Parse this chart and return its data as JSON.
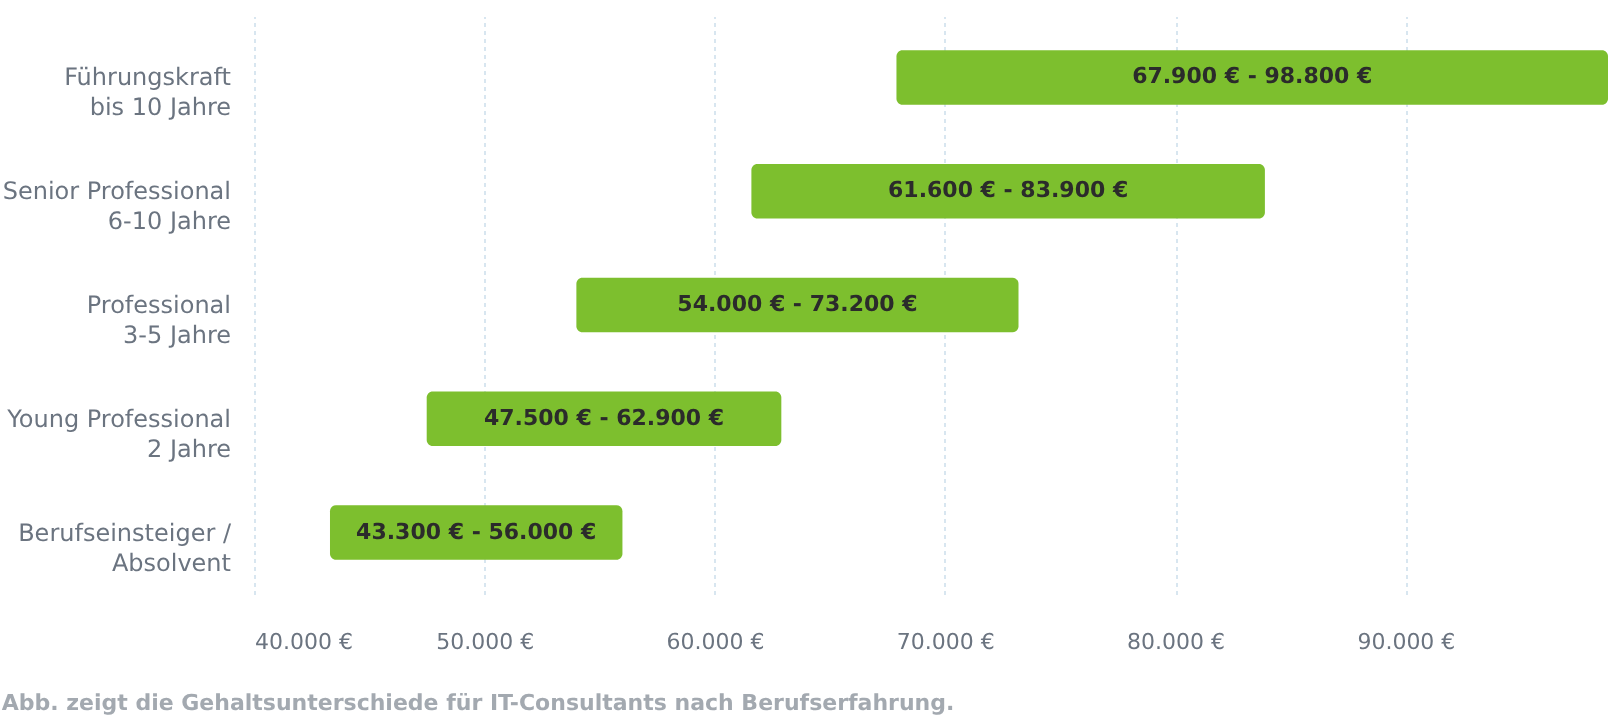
{
  "chart_data": {
    "type": "bar",
    "orientation": "horizontal",
    "categories": [
      "Führungskraft\nbis 10 Jahre",
      "Senior Professional\n6-10 Jahre",
      "Professional\n3-5 Jahre",
      "Young Professional\n2 Jahre",
      "Berufseinsteiger /\nAbsolvent"
    ],
    "base": [
      67900,
      61600,
      54000,
      47500,
      43300
    ],
    "values": [
      30900,
      22300,
      19200,
      15400,
      12700
    ],
    "color": "#7dbf2e",
    "xlim": [
      40000,
      98800
    ],
    "xticks": [
      {
        "value": 40000,
        "label": "40.000 €"
      },
      {
        "value": 50000,
        "label": "50.000 €"
      },
      {
        "value": 60000,
        "label": "60.000 €"
      },
      {
        "value": 70000,
        "label": "70.000 €"
      },
      {
        "value": 80000,
        "label": "80.000 €"
      },
      {
        "value": 90000,
        "label": "90.000 €"
      }
    ],
    "grid": "x",
    "annotations": [
      "67.900 €  -  98.800 €",
      "61.600 €  -  83.900 €",
      "54.000 €  -  73.200 €",
      "47.500 €  -  62.900 €",
      "43.300 €  -  56.000 €",
      "Abb. zeigt die Gehaltsunterschiede für IT-Consultants nach Berufserfahrung."
    ]
  }
}
